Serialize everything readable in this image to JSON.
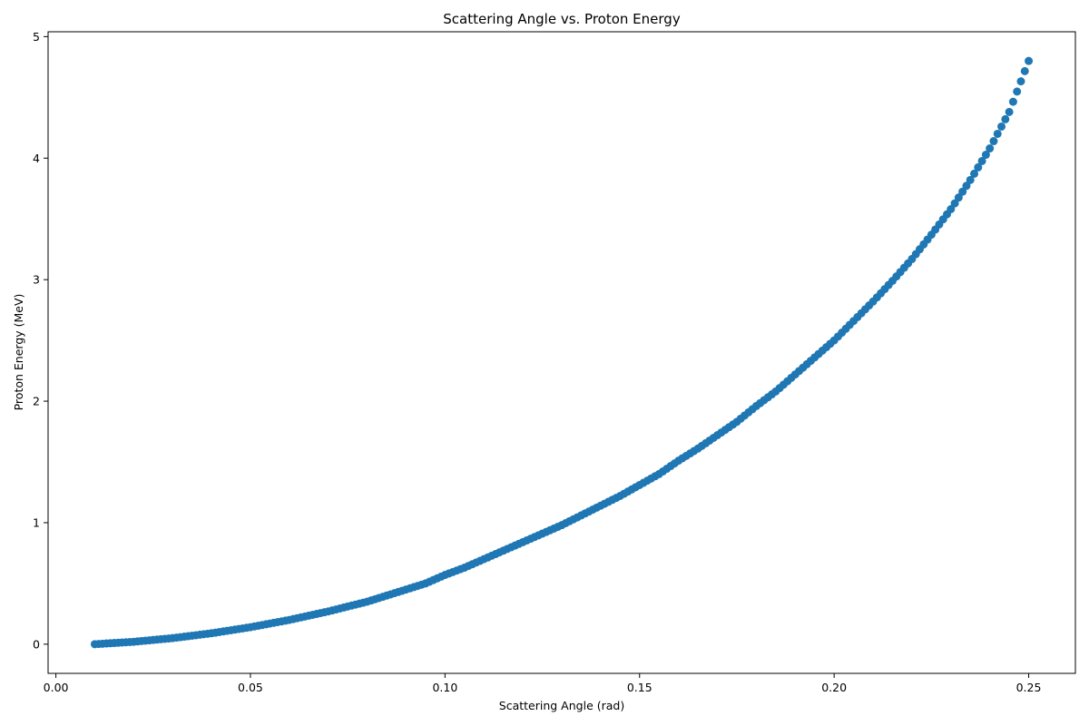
{
  "chart_data": {
    "type": "scatter",
    "title": "Scattering Angle vs. Proton Energy",
    "xlabel": "Scattering Angle (rad)",
    "ylabel": "Proton Energy (MeV)",
    "xlim": [
      -0.002,
      0.262
    ],
    "ylim": [
      -0.24,
      5.04
    ],
    "xticks": [
      0.0,
      0.05,
      0.1,
      0.15,
      0.2,
      0.25
    ],
    "xtick_labels": [
      "0.00",
      "0.05",
      "0.10",
      "0.15",
      "0.20",
      "0.25"
    ],
    "yticks": [
      0,
      1,
      2,
      3,
      4,
      5
    ],
    "ytick_labels": [
      "0",
      "1",
      "2",
      "3",
      "4",
      "5"
    ],
    "grid": false,
    "legend": "none",
    "marker_color": "#1f77b4",
    "series": [
      {
        "x": [
          0.01,
          0.015,
          0.02,
          0.025,
          0.03,
          0.035,
          0.04,
          0.045,
          0.05,
          0.055,
          0.06,
          0.065,
          0.07,
          0.075,
          0.08,
          0.085,
          0.09,
          0.095,
          0.1,
          0.105,
          0.11,
          0.115,
          0.12,
          0.125,
          0.13,
          0.135,
          0.14,
          0.145,
          0.15,
          0.155,
          0.16,
          0.165,
          0.17,
          0.175,
          0.18,
          0.185,
          0.19,
          0.195,
          0.2,
          0.205,
          0.21,
          0.215,
          0.22,
          0.225,
          0.23,
          0.235,
          0.24,
          0.245,
          0.25
        ],
        "y": [
          0.0,
          0.01,
          0.02,
          0.035,
          0.05,
          0.07,
          0.09,
          0.115,
          0.14,
          0.17,
          0.2,
          0.235,
          0.27,
          0.31,
          0.35,
          0.4,
          0.45,
          0.5,
          0.57,
          0.63,
          0.7,
          0.77,
          0.84,
          0.91,
          0.98,
          1.06,
          1.14,
          1.22,
          1.31,
          1.4,
          1.51,
          1.61,
          1.72,
          1.83,
          1.96,
          2.08,
          2.22,
          2.36,
          2.5,
          2.66,
          2.82,
          2.99,
          3.17,
          3.37,
          3.58,
          3.82,
          4.08,
          4.38,
          4.8
        ]
      }
    ]
  }
}
